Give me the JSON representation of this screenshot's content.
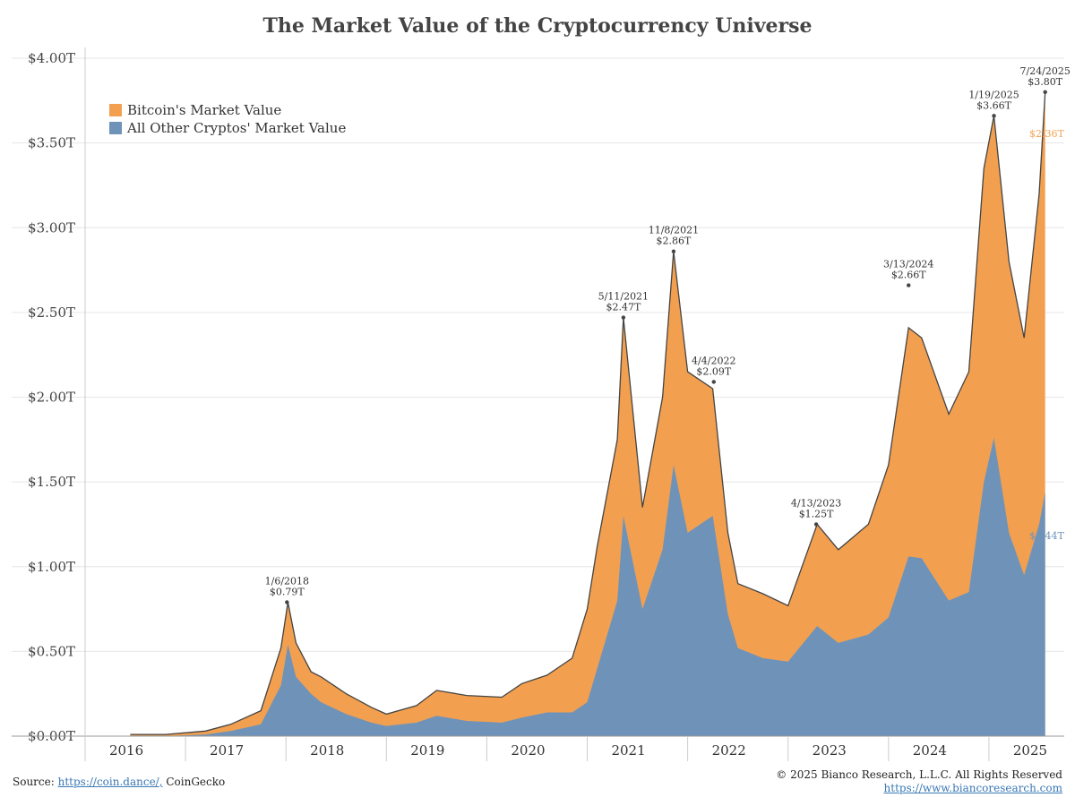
{
  "title": "The Market Value of the Cryptocurrency Universe",
  "colors": {
    "bitcoin": "#f2a050",
    "others": "#6f93b8",
    "outline": "#444444",
    "grid": "#e6e6e6"
  },
  "legend": {
    "items": [
      {
        "label": "Bitcoin's Market Value"
      },
      {
        "label": "All Other Cryptos' Market Value"
      }
    ]
  },
  "footer": {
    "source_label": "Source:",
    "source_link": "https://coin.dance/,",
    "source_extra": "CoinGecko",
    "copyright": "© 2025 Bianco Research, L.L.C. All Rights Reserved",
    "website": "https://www.biancoresearch.com"
  },
  "chart_data": {
    "type": "area",
    "stacked": true,
    "legend_position": "top-left",
    "grid": true,
    "ylim": [
      0,
      4.0
    ],
    "xlim": [
      2016.0,
      2025.75
    ],
    "y_ticks": [
      "$0.00T",
      "$0.50T",
      "$1.00T",
      "$1.50T",
      "$2.00T",
      "$2.50T",
      "$3.00T",
      "$3.50T",
      "$4.00T"
    ],
    "x_ticks": [
      "2016",
      "2017",
      "2018",
      "2019",
      "2020",
      "2021",
      "2022",
      "2023",
      "2024",
      "2025"
    ],
    "x": [
      2016.45,
      2016.8,
      2017.2,
      2017.45,
      2017.75,
      2017.95,
      2018.02,
      2018.1,
      2018.25,
      2018.35,
      2018.6,
      2018.85,
      2019.0,
      2019.3,
      2019.5,
      2019.8,
      2020.15,
      2020.35,
      2020.6,
      2020.85,
      2021.0,
      2021.1,
      2021.3,
      2021.36,
      2021.55,
      2021.75,
      2021.86,
      2022.0,
      2022.25,
      2022.4,
      2022.5,
      2022.75,
      2023.0,
      2023.29,
      2023.5,
      2023.8,
      2024.0,
      2024.2,
      2024.33,
      2024.6,
      2024.8,
      2024.95,
      2025.05,
      2025.2,
      2025.35,
      2025.5,
      2025.56
    ],
    "series": [
      {
        "name": "Bitcoin's Market Value",
        "values": [
          0.01,
          0.01,
          0.02,
          0.04,
          0.08,
          0.22,
          0.25,
          0.2,
          0.13,
          0.15,
          0.12,
          0.09,
          0.07,
          0.1,
          0.15,
          0.15,
          0.15,
          0.2,
          0.22,
          0.32,
          0.55,
          0.72,
          0.95,
          1.17,
          0.6,
          0.9,
          1.26,
          0.95,
          0.75,
          0.48,
          0.38,
          0.38,
          0.33,
          0.6,
          0.55,
          0.65,
          0.9,
          1.35,
          1.3,
          1.1,
          1.3,
          1.85,
          1.9,
          1.6,
          1.4,
          1.95,
          2.36
        ]
      },
      {
        "name": "All Other Cryptos' Market Value",
        "values": [
          0.0,
          0.0,
          0.01,
          0.03,
          0.07,
          0.3,
          0.54,
          0.35,
          0.25,
          0.2,
          0.13,
          0.08,
          0.06,
          0.08,
          0.12,
          0.09,
          0.08,
          0.11,
          0.14,
          0.14,
          0.2,
          0.4,
          0.8,
          1.3,
          0.75,
          1.1,
          1.6,
          1.2,
          1.3,
          0.72,
          0.52,
          0.46,
          0.44,
          0.65,
          0.55,
          0.6,
          0.7,
          1.06,
          1.05,
          0.8,
          0.85,
          1.5,
          1.76,
          1.2,
          0.95,
          1.25,
          1.44
        ]
      }
    ],
    "annotations": [
      {
        "date": "1/6/2018",
        "value": "$0.79T",
        "x": 2018.01,
        "y": 0.79
      },
      {
        "date": "5/11/2021",
        "value": "$2.47T",
        "x": 2021.36,
        "y": 2.47
      },
      {
        "date": "11/8/2021",
        "value": "$2.86T",
        "x": 2021.86,
        "y": 2.86
      },
      {
        "date": "4/4/2022",
        "value": "$2.09T",
        "x": 2022.26,
        "y": 2.09
      },
      {
        "date": "4/13/2023",
        "value": "$1.25T",
        "x": 2023.28,
        "y": 1.25
      },
      {
        "date": "3/13/2024",
        "value": "$2.66T",
        "x": 2024.2,
        "y": 2.66
      },
      {
        "date": "1/19/2025",
        "value": "$3.66T",
        "x": 2025.05,
        "y": 3.66
      },
      {
        "date": "7/24/2025",
        "value": "$3.80T",
        "x": 2025.56,
        "y": 3.8
      }
    ],
    "end_labels": {
      "bitcoin": "$2.36T",
      "others": "$1.44T"
    }
  }
}
